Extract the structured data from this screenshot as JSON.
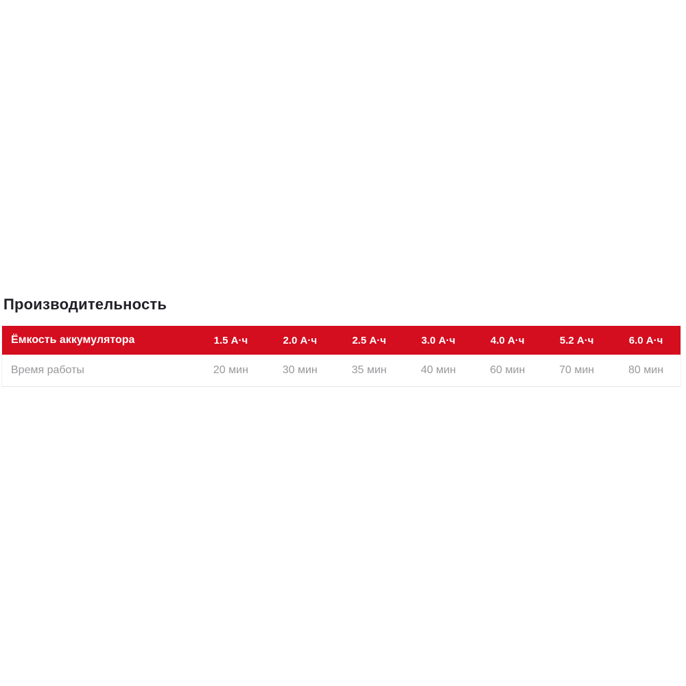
{
  "theme": {
    "accent": "#d40d1f",
    "header_text": "#ffffff",
    "body_text": "#98989c",
    "title_text": "#222127",
    "border": "#e5e5e7",
    "edge": "#f0f0f0"
  },
  "section": {
    "title": "Производительность"
  },
  "table": {
    "header": {
      "label": "Ёмкость аккумулятора",
      "columns": [
        "1.5 А·ч",
        "2.0 А·ч",
        "2.5 А·ч",
        "3.0 А·ч",
        "4.0 А·ч",
        "5.2 А·ч",
        "6.0 А·ч"
      ]
    },
    "rows": [
      {
        "label": "Время работы",
        "values": [
          "20 мин",
          "30 мин",
          "35 мин",
          "40 мин",
          "60 мин",
          "70 мин",
          "80 мин"
        ]
      }
    ]
  }
}
